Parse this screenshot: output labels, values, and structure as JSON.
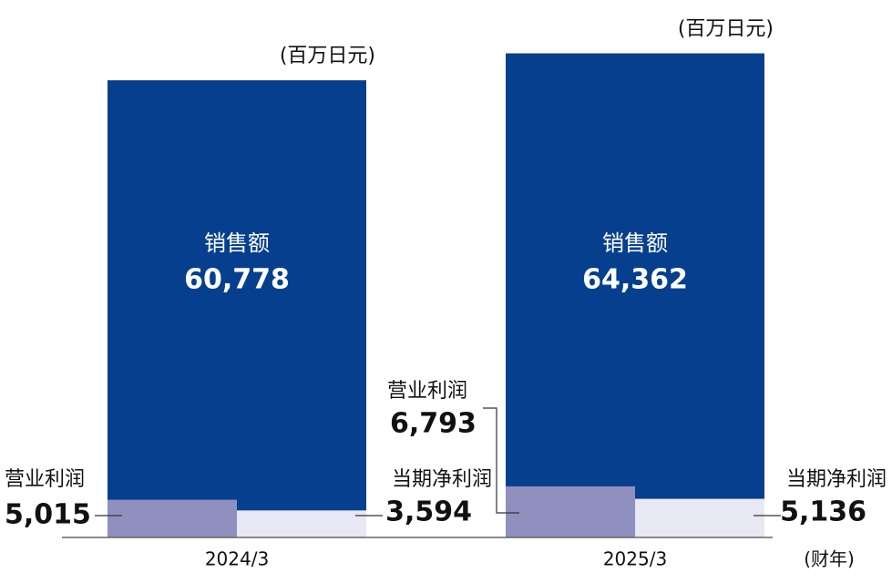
{
  "chart_data": {
    "type": "bar",
    "unit": "(百万日元)",
    "xlabel": "(财年)",
    "categories": [
      "2024/3",
      "2025/3"
    ],
    "series": [
      {
        "name": "销售额",
        "color": "#063f8e",
        "values": [
          60778,
          64362
        ],
        "value_labels": [
          "60,778",
          "64,362"
        ]
      },
      {
        "name": "营业利润",
        "color": "#8f90c0",
        "values": [
          5015,
          6793
        ],
        "value_labels": [
          "5,015",
          "6,793"
        ]
      },
      {
        "name": "当期净利润",
        "color": "#e8e8f4",
        "values": [
          3594,
          5136
        ],
        "value_labels": [
          "3,594",
          "5,136"
        ]
      }
    ],
    "ylim": [
      0,
      70000
    ]
  }
}
